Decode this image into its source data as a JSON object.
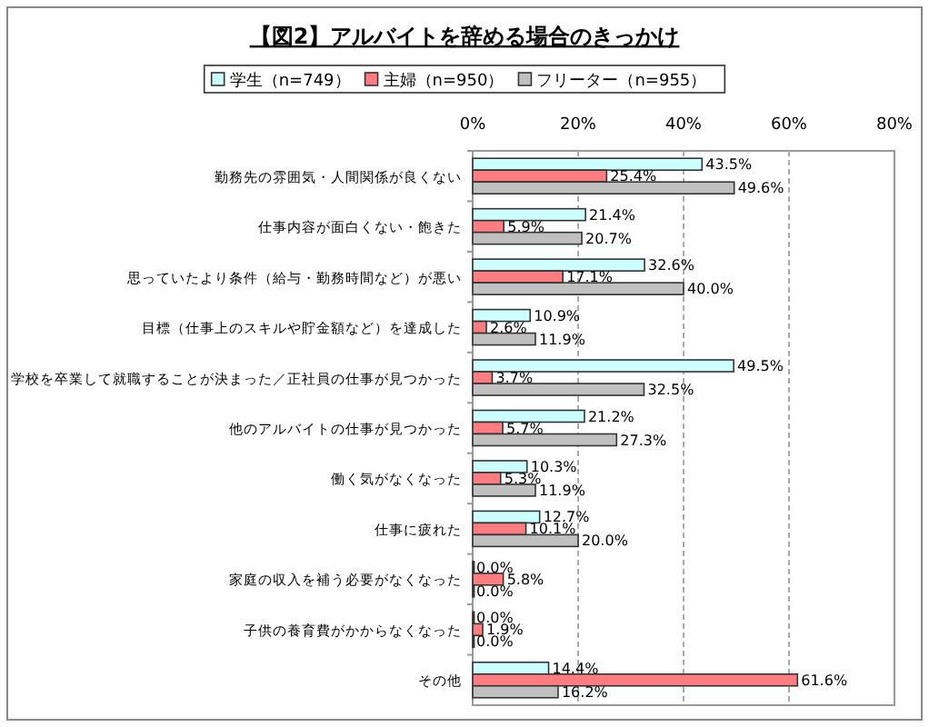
{
  "chart_data": {
    "type": "bar",
    "orientation": "horizontal",
    "title": "【図2】アルバイトを辞める場合のきっかけ",
    "categories": [
      "勤務先の雰囲気・人間関係が良くない",
      "仕事内容が面白くない・飽きた",
      "思っていたより条件（給与・勤務時間など）が悪い",
      "目標（仕事上のスキルや貯金額など）を達成した",
      "学校を卒業して就職することが決まった／正社員の仕事が見つかった",
      "他のアルバイトの仕事が見つかった",
      "働く気がなくなった",
      "仕事に疲れた",
      "家庭の収入を補う必要がなくなった",
      "子供の養育費がかからなくなった",
      "その他"
    ],
    "series": [
      {
        "name": "学生（n=749）",
        "color": "#ccffff",
        "values": [
          43.5,
          21.4,
          32.6,
          10.9,
          49.5,
          21.2,
          10.3,
          12.7,
          0,
          0,
          14.4
        ],
        "value_labels": [
          "43.5%",
          "21.4%",
          "32.6%",
          "10.9%",
          "49.5%",
          "21.2%",
          "10.3%",
          "12.7%",
          "0.0%",
          "0.0%",
          "14.4%"
        ]
      },
      {
        "name": "主婦（n=950）",
        "color": "#ff7c80",
        "values": [
          25.4,
          5.9,
          17.1,
          2.6,
          3.7,
          5.7,
          5.3,
          10.1,
          5.8,
          1.9,
          61.6
        ],
        "value_labels": [
          "25.4%",
          "5.9%",
          "17.1%",
          "2.6%",
          "3.7%",
          "5.7%",
          "5.3%",
          "10.1%",
          "5.8%",
          "1.9%",
          "61.6%"
        ]
      },
      {
        "name": "フリーター（n=955）",
        "color": "#c0c0c0",
        "values": [
          49.6,
          20.7,
          40.0,
          11.9,
          32.5,
          27.3,
          11.9,
          20.0,
          0,
          0,
          16.2
        ],
        "value_labels": [
          "49.6%",
          "20.7%",
          "40.0%",
          "11.9%",
          "32.5%",
          "27.3%",
          "11.9%",
          "20.0%",
          "0.0%",
          "0.0%",
          "16.2%"
        ]
      }
    ],
    "xlim": [
      0,
      80
    ],
    "xticks": [
      {
        "value": 0,
        "label": "0%"
      },
      {
        "value": 20,
        "label": "20%"
      },
      {
        "value": 40,
        "label": "40%"
      },
      {
        "value": 60,
        "label": "60%"
      },
      {
        "value": 80,
        "label": "80%"
      }
    ],
    "grid": "x",
    "legend": "top"
  }
}
